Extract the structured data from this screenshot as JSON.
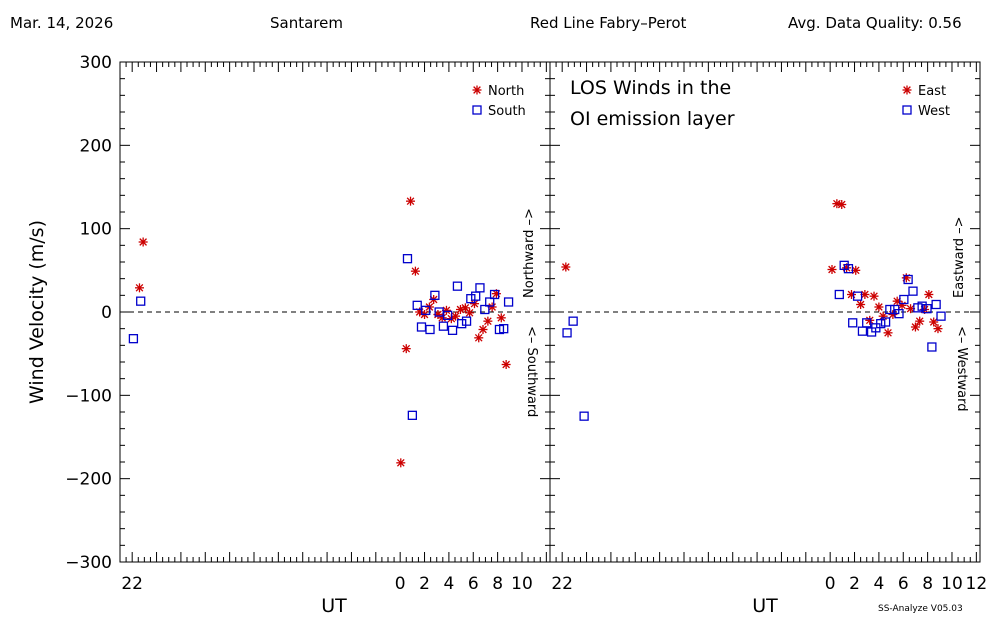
{
  "header": {
    "date": "Mar. 14, 2026",
    "site": "Santarem",
    "instrument": "Red Line Fabry–Perot",
    "quality": "Avg. Data Quality: 0.56"
  },
  "footer": "SS-Analyze V05.03",
  "chart_data": [
    {
      "type": "scatter",
      "panel": "north-south",
      "xlabel": "UT",
      "ylabel": "Wind Velocity (m/s)",
      "ylim": [
        -300,
        300
      ],
      "yticks": [
        300,
        200,
        100,
        0,
        -100,
        -200,
        -300
      ],
      "yticklabels": [
        "300",
        "200",
        "100",
        "0",
        "−100",
        "−200",
        "−300"
      ],
      "xlim": [
        -23.0,
        12.3
      ],
      "xticks": [
        -22,
        0,
        2,
        4,
        6,
        8,
        10
      ],
      "xticklabels": [
        "22",
        "0",
        "2",
        "4",
        "6",
        "8",
        "10"
      ],
      "zero_line": "dashed",
      "direction_labels": {
        "positive": "Northward –>",
        "negative": "<– Southward"
      },
      "series": [
        {
          "name": "North",
          "marker": "asterisk",
          "color": "#cc0000",
          "points": [
            [
              -21.4,
              29
            ],
            [
              -21.1,
              84
            ],
            [
              0.05,
              -181
            ],
            [
              0.5,
              -44
            ],
            [
              0.85,
              133
            ],
            [
              1.25,
              49
            ],
            [
              1.6,
              0
            ],
            [
              2.0,
              -3
            ],
            [
              2.4,
              6
            ],
            [
              2.75,
              15
            ],
            [
              3.1,
              -3
            ],
            [
              3.45,
              -7
            ],
            [
              3.8,
              2
            ],
            [
              4.2,
              -8
            ],
            [
              4.55,
              -5
            ],
            [
              4.95,
              3
            ],
            [
              5.35,
              5
            ],
            [
              5.7,
              -1
            ],
            [
              6.1,
              10
            ],
            [
              6.45,
              -31
            ],
            [
              6.8,
              -21
            ],
            [
              7.2,
              -11
            ],
            [
              7.55,
              6
            ],
            [
              7.9,
              22
            ],
            [
              8.3,
              -7
            ],
            [
              8.7,
              -63
            ]
          ]
        },
        {
          "name": "South",
          "marker": "square",
          "color": "#0000cc",
          "points": [
            [
              -21.9,
              -32
            ],
            [
              -21.3,
              13
            ],
            [
              0.6,
              64
            ],
            [
              1.0,
              -124
            ],
            [
              1.4,
              8
            ],
            [
              1.75,
              -18
            ],
            [
              2.1,
              2
            ],
            [
              2.45,
              -21
            ],
            [
              2.85,
              20
            ],
            [
              3.2,
              0
            ],
            [
              3.55,
              -17
            ],
            [
              3.9,
              -4
            ],
            [
              4.3,
              -22
            ],
            [
              4.7,
              31
            ],
            [
              5.05,
              -14
            ],
            [
              5.45,
              -11
            ],
            [
              5.8,
              16
            ],
            [
              6.2,
              19
            ],
            [
              6.55,
              29
            ],
            [
              6.95,
              3
            ],
            [
              7.35,
              12
            ],
            [
              7.75,
              21
            ],
            [
              8.15,
              -21
            ],
            [
              8.5,
              -20
            ],
            [
              8.9,
              12
            ]
          ]
        }
      ]
    },
    {
      "type": "scatter",
      "panel": "east-west",
      "title": "LOS Winds in the\nOI emission layer",
      "xlabel": "UT",
      "ylim": [
        -300,
        300
      ],
      "xlim": [
        -23.0,
        12.3
      ],
      "xticks": [
        -22,
        0,
        2,
        4,
        6,
        8,
        10,
        12
      ],
      "xticklabels": [
        "22",
        "0",
        "2",
        "4",
        "6",
        "8",
        "10",
        "12"
      ],
      "zero_line": "dashed",
      "direction_labels": {
        "positive": "Eastward –>",
        "negative": "<– Westward"
      },
      "series": [
        {
          "name": "East",
          "marker": "asterisk",
          "color": "#cc0000",
          "points": [
            [
              -21.7,
              54
            ],
            [
              0.15,
              51
            ],
            [
              0.55,
              130
            ],
            [
              0.95,
              129
            ],
            [
              1.35,
              53
            ],
            [
              1.75,
              21
            ],
            [
              2.1,
              50
            ],
            [
              2.5,
              9
            ],
            [
              2.85,
              21
            ],
            [
              3.25,
              -10
            ],
            [
              3.6,
              19
            ],
            [
              4.0,
              6
            ],
            [
              4.35,
              -5
            ],
            [
              4.75,
              -25
            ],
            [
              5.15,
              -3
            ],
            [
              5.5,
              13
            ],
            [
              5.9,
              8
            ],
            [
              6.25,
              41
            ],
            [
              6.6,
              4
            ],
            [
              7.0,
              -18
            ],
            [
              7.35,
              -11
            ],
            [
              7.75,
              3
            ],
            [
              8.1,
              21
            ],
            [
              8.5,
              -12
            ],
            [
              8.85,
              -20
            ]
          ]
        },
        {
          "name": "West",
          "marker": "square",
          "color": "#0000cc",
          "points": [
            [
              -21.6,
              -25
            ],
            [
              -21.1,
              -11
            ],
            [
              -20.2,
              -125
            ],
            [
              0.75,
              21
            ],
            [
              1.15,
              56
            ],
            [
              1.5,
              52
            ],
            [
              1.85,
              -13
            ],
            [
              2.25,
              19
            ],
            [
              2.65,
              -23
            ],
            [
              3.0,
              -13
            ],
            [
              3.4,
              -24
            ],
            [
              3.75,
              -19
            ],
            [
              4.15,
              -14
            ],
            [
              4.55,
              -12
            ],
            [
              4.9,
              3
            ],
            [
              5.3,
              3
            ],
            [
              5.65,
              -2
            ],
            [
              6.05,
              15
            ],
            [
              6.4,
              39
            ],
            [
              6.8,
              25
            ],
            [
              7.2,
              5
            ],
            [
              7.55,
              7
            ],
            [
              7.95,
              4
            ],
            [
              8.35,
              -42
            ],
            [
              8.7,
              9
            ],
            [
              9.1,
              -5
            ]
          ]
        }
      ]
    }
  ]
}
